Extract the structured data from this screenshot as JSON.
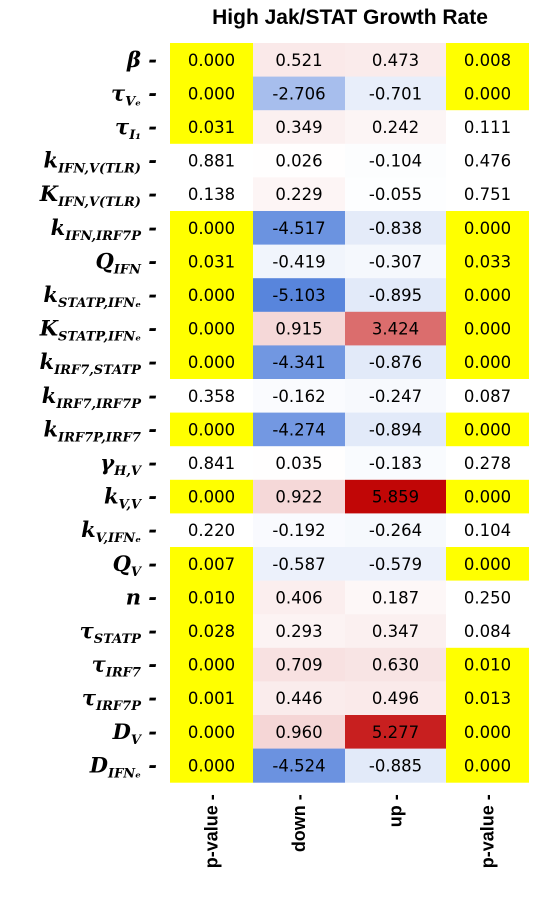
{
  "chart_data": {
    "type": "heatmap",
    "title": "High Jak/STAT Growth Rate",
    "columns": [
      "p-value",
      "down",
      "up",
      "p-value"
    ],
    "rows": [
      {
        "label": "β",
        "sub": "",
        "values": [
          "0.000",
          "0.521",
          "0.473",
          "0.008"
        ]
      },
      {
        "label": "τ",
        "sub": "Vₑ",
        "values": [
          "0.000",
          "-2.706",
          "-0.701",
          "0.000"
        ]
      },
      {
        "label": "τ",
        "sub": "I₁",
        "values": [
          "0.031",
          "0.349",
          "0.242",
          "0.111"
        ]
      },
      {
        "label": "k",
        "sub": "IFN,V(TLR)",
        "values": [
          "0.881",
          "0.026",
          "-0.104",
          "0.476"
        ]
      },
      {
        "label": "K",
        "sub": "IFN,V(TLR)",
        "values": [
          "0.138",
          "0.229",
          "-0.055",
          "0.751"
        ]
      },
      {
        "label": "k",
        "sub": "IFN,IRF7P",
        "values": [
          "0.000",
          "-4.517",
          "-0.838",
          "0.000"
        ]
      },
      {
        "label": "Q",
        "sub": "IFN",
        "values": [
          "0.031",
          "-0.419",
          "-0.307",
          "0.033"
        ]
      },
      {
        "label": "k",
        "sub": "STATP,IFNₑ",
        "values": [
          "0.000",
          "-5.103",
          "-0.895",
          "0.000"
        ]
      },
      {
        "label": "K",
        "sub": "STATP,IFNₑ",
        "values": [
          "0.000",
          "0.915",
          "3.424",
          "0.000"
        ]
      },
      {
        "label": "k",
        "sub": "IRF7,STATP",
        "values": [
          "0.000",
          "-4.341",
          "-0.876",
          "0.000"
        ]
      },
      {
        "label": "k",
        "sub": "IRF7,IRF7P",
        "values": [
          "0.358",
          "-0.162",
          "-0.247",
          "0.087"
        ]
      },
      {
        "label": "k",
        "sub": "IRF7P,IRF7",
        "values": [
          "0.000",
          "-4.274",
          "-0.894",
          "0.000"
        ]
      },
      {
        "label": "γ",
        "sub": "H,V",
        "values": [
          "0.841",
          "0.035",
          "-0.183",
          "0.278"
        ]
      },
      {
        "label": "k",
        "sub": "V,V",
        "values": [
          "0.000",
          "0.922",
          "5.859",
          "0.000"
        ]
      },
      {
        "label": "k",
        "sub": "V,IFNₑ",
        "values": [
          "0.220",
          "-0.192",
          "-0.264",
          "0.104"
        ]
      },
      {
        "label": "Q",
        "sub": "V",
        "values": [
          "0.007",
          "-0.587",
          "-0.579",
          "0.000"
        ]
      },
      {
        "label": "n",
        "sub": "",
        "values": [
          "0.010",
          "0.406",
          "0.187",
          "0.250"
        ]
      },
      {
        "label": "τ",
        "sub": "STATP",
        "values": [
          "0.028",
          "0.293",
          "0.347",
          "0.084"
        ]
      },
      {
        "label": "τ",
        "sub": "IRF7",
        "values": [
          "0.000",
          "0.709",
          "0.630",
          "0.010"
        ]
      },
      {
        "label": "τ",
        "sub": "IRF7P",
        "values": [
          "0.001",
          "0.446",
          "0.496",
          "0.013"
        ]
      },
      {
        "label": "D",
        "sub": "V",
        "values": [
          "0.000",
          "0.960",
          "5.277",
          "0.000"
        ]
      },
      {
        "label": "D",
        "sub": "IFNₑ",
        "values": [
          "0.000",
          "-4.524",
          "-0.885",
          "0.000"
        ]
      }
    ],
    "pvalue_threshold": 0.05,
    "highlight_color": "#ffff00",
    "colors": {
      "negative": "#3b6fd6",
      "positive": "#c00000",
      "neutral": "#ffffff"
    },
    "color_range": [
      -6,
      6
    ]
  }
}
